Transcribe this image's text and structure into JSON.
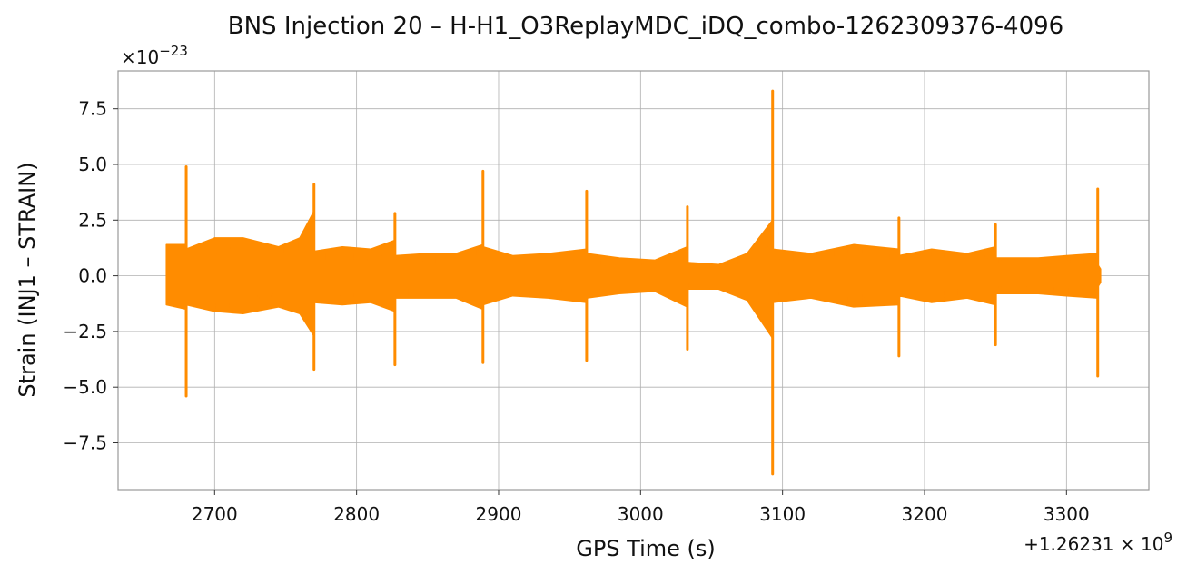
{
  "chart_data": {
    "type": "line",
    "title": "BNS Injection 20 – H-H1_O3ReplayMDC_iDQ_combo-1262309376-4096",
    "xlabel": "GPS Time (s)",
    "ylabel": "Strain (INJ1 – STRAIN)",
    "x_offset_label": "+1.26231 × 10",
    "x_offset_exp": "9",
    "y_scale_label": "×10",
    "y_scale_exp": "−23",
    "xlim": [
      2632,
      3358
    ],
    "ylim": [
      -9.6,
      9.2
    ],
    "xticks": [
      2700,
      2800,
      2900,
      3000,
      3100,
      3200,
      3300
    ],
    "xtick_labels": [
      "2700",
      "2800",
      "2900",
      "3000",
      "3100",
      "3200",
      "3300"
    ],
    "yticks": [
      -7.5,
      -5.0,
      -2.5,
      0.0,
      2.5,
      5.0,
      7.5
    ],
    "ytick_labels": [
      "−7.5",
      "−5.0",
      "−2.5",
      "0.0",
      "2.5",
      "5.0",
      "7.5"
    ],
    "grid": true,
    "line_color": "#ff8c00",
    "series": [
      {
        "x": [
          2666,
          2680,
          2680,
          2680,
          2700,
          2720,
          2745,
          2760,
          2770,
          2770,
          2770,
          2790,
          2810,
          2827,
          2827,
          2827,
          2850,
          2870,
          2889,
          2889,
          2889,
          2910,
          2935,
          2962,
          2962,
          2962,
          2985,
          3010,
          3033,
          3033,
          3033,
          3055,
          3075,
          3093,
          3093,
          3093,
          3120,
          3150,
          3182,
          3182,
          3182,
          3205,
          3230,
          3250,
          3250,
          3250,
          3280,
          3300,
          3322,
          3322,
          3322,
          3324
        ],
        "upper": [
          1.4,
          1.4,
          4.9,
          1.2,
          1.7,
          1.7,
          1.3,
          1.7,
          2.9,
          4.1,
          1.1,
          1.3,
          1.2,
          1.6,
          2.8,
          0.9,
          1.0,
          1.0,
          1.4,
          4.7,
          1.3,
          0.9,
          1.0,
          1.2,
          3.8,
          1.0,
          0.8,
          0.7,
          1.3,
          3.1,
          0.6,
          0.5,
          1.0,
          2.5,
          8.3,
          1.2,
          1.0,
          1.4,
          1.2,
          2.6,
          0.9,
          1.2,
          1.0,
          1.3,
          2.3,
          0.8,
          0.8,
          0.9,
          1.0,
          3.9,
          0.5,
          0.3
        ],
        "lower": [
          -1.3,
          -1.5,
          -5.4,
          -1.3,
          -1.6,
          -1.7,
          -1.4,
          -1.7,
          -2.7,
          -4.2,
          -1.2,
          -1.3,
          -1.2,
          -1.6,
          -4.0,
          -1.0,
          -1.0,
          -1.0,
          -1.5,
          -3.9,
          -1.3,
          -0.9,
          -1.0,
          -1.2,
          -3.8,
          -1.0,
          -0.8,
          -0.7,
          -1.4,
          -3.3,
          -0.6,
          -0.6,
          -1.1,
          -2.8,
          -8.9,
          -1.2,
          -1.0,
          -1.4,
          -1.3,
          -3.6,
          -0.9,
          -1.2,
          -1.0,
          -1.3,
          -3.1,
          -0.8,
          -0.8,
          -0.9,
          -1.0,
          -4.5,
          -0.5,
          -0.3
        ],
        "spikes": [
          {
            "x": 2680,
            "max": 4.9,
            "min": -5.4
          },
          {
            "x": 2770,
            "max": 4.1,
            "min": -4.2
          },
          {
            "x": 2827,
            "max": 2.8,
            "min": -4.0
          },
          {
            "x": 2889,
            "max": 4.7,
            "min": -3.9
          },
          {
            "x": 2962,
            "max": 3.8,
            "min": -3.8
          },
          {
            "x": 3033,
            "max": 3.1,
            "min": -3.3
          },
          {
            "x": 3093,
            "max": 8.3,
            "min": -8.9
          },
          {
            "x": 3182,
            "max": 2.6,
            "min": -3.6
          },
          {
            "x": 3250,
            "max": 2.3,
            "min": -3.1
          },
          {
            "x": 3322,
            "max": 3.9,
            "min": -4.5
          }
        ]
      }
    ]
  }
}
